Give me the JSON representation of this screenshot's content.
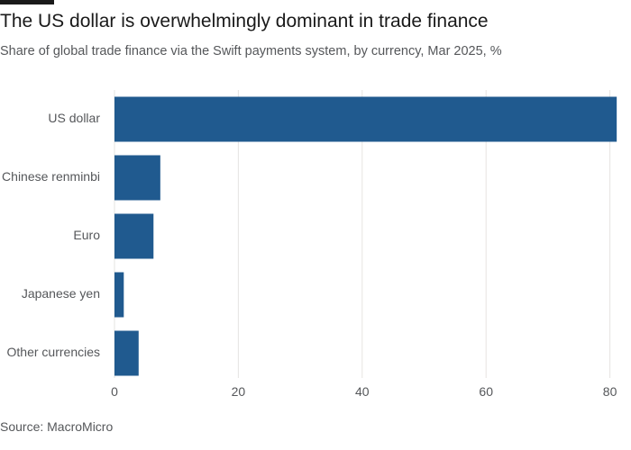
{
  "header": {
    "title": "The US dollar is overwhelmingly dominant in trade finance",
    "subtitle": "Share of global trade finance via the Swift payments system, by currency, Mar 2025, %"
  },
  "footer": {
    "source": "Source: MacroMicro"
  },
  "colors": {
    "bar": "#205a8f",
    "grid": "#e6e4e2",
    "text": "#1a1a1a",
    "muted": "#55575a"
  },
  "chart_data": {
    "type": "bar",
    "orientation": "horizontal",
    "title": "The US dollar is overwhelmingly dominant in trade finance",
    "subtitle": "Share of global trade finance via the Swift payments system, by currency, Mar 2025, %",
    "categories": [
      "US dollar",
      "Chinese renminbi",
      "Euro",
      "Japanese yen",
      "Other currencies"
    ],
    "values": [
      81.1,
      7.4,
      6.3,
      1.5,
      3.9
    ],
    "xlim": [
      0,
      80
    ],
    "xticks": [
      0,
      20,
      40,
      60,
      80
    ],
    "xlabel": "",
    "ylabel": "",
    "grid": true,
    "legend": "none"
  }
}
